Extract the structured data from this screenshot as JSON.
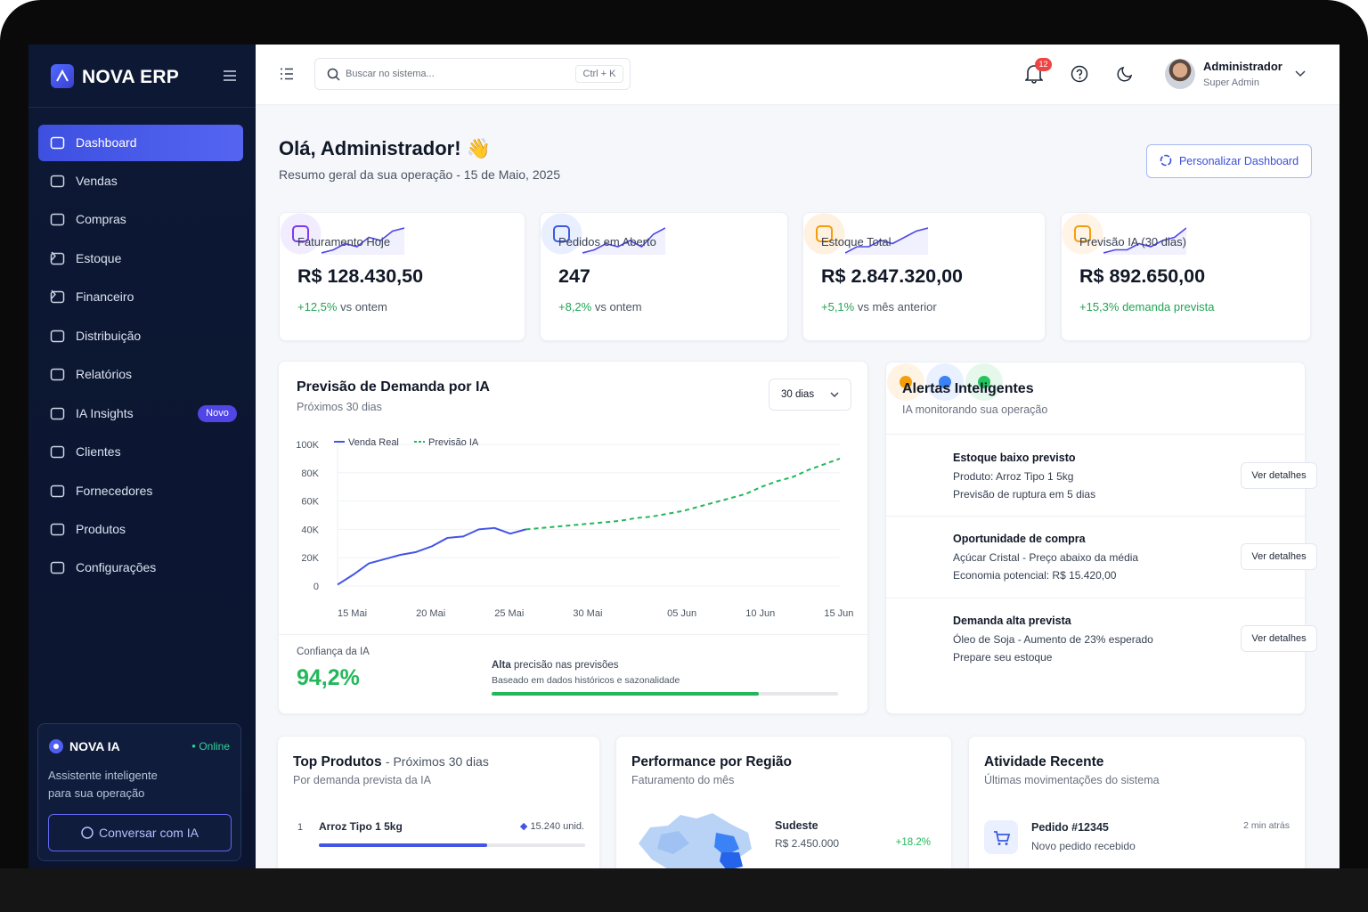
{
  "sidebar": {
    "brand": "NOVA ERP",
    "menu": [
      {
        "label": "Dashboard"
      },
      {
        "label": "Vendas"
      },
      {
        "label": "Compras"
      },
      {
        "label": "Estoque",
        "submenu": true
      },
      {
        "label": "Financeiro",
        "submenu": true
      },
      {
        "label": "Distribuição"
      },
      {
        "label": "Relatórios"
      },
      {
        "label": "IA Insights",
        "badge": "Novo"
      },
      {
        "label": "Clientes"
      },
      {
        "label": "Fornecedores"
      },
      {
        "label": "Produtos"
      },
      {
        "label": "Configurações"
      }
    ],
    "assistant": {
      "title": "NOVA IA",
      "status": "Online",
      "description": "Assistente inteligente para sua operação",
      "button": "Conversar com IA"
    }
  },
  "topbar": {
    "search_placeholder": "Buscar no sistema...",
    "shortcut": "Ctrl + K",
    "notifications": 12,
    "user_name": "Administrador",
    "user_role": "Super Admin"
  },
  "header": {
    "greeting": "Olá, Administrador! 👋",
    "subtitle": "Resumo geral da sua operação - 15 de Maio, 2025",
    "button": "Personalizar Dashboard"
  },
  "kpis": [
    {
      "label": "Faturamento Hoje",
      "value": "R$ 128.430,50",
      "change": "+12,5%",
      "comparison": "vs ontem",
      "color": "#7c3aed",
      "icon_bg": "#f1edff",
      "trend": [
        1,
        2,
        4,
        3,
        6,
        5,
        8,
        9
      ]
    },
    {
      "label": "Pedidos em Aberto",
      "value": "247",
      "change": "+8,2%",
      "comparison": "vs ontem",
      "color": "#3b5bdb",
      "icon_bg": "#e9efff",
      "trend": [
        1,
        2,
        4,
        3,
        5,
        3,
        7,
        9
      ]
    },
    {
      "label": "Estoque Total",
      "value": "R$ 2.847.320,00",
      "change": "+5,1%",
      "comparison": "vs mês anterior",
      "color": "#f59e0b",
      "icon_bg": "#fff1df",
      "trend": [
        1,
        3,
        3,
        5,
        4,
        6,
        8,
        9
      ]
    },
    {
      "label": "Previsão IA (30 dias)",
      "value": "R$ 892.650,00",
      "change": "+15,3%",
      "comparison": "demanda prevista",
      "color": "#f59e0b",
      "icon_bg": "#fff4e6",
      "trend": [
        1,
        2,
        2,
        4,
        3,
        5,
        6,
        9
      ]
    }
  ],
  "demand_chart": {
    "type": "line",
    "title": "Previsão de Demanda por IA",
    "subtitle": "Próximos 30 dias",
    "period": "30 dias",
    "categories": [
      "15 Mai",
      null,
      null,
      null,
      null,
      "20 Mai",
      null,
      null,
      null,
      null,
      "25 Mai",
      null,
      null,
      null,
      null,
      "30 Mai",
      null,
      null,
      null,
      null,
      null,
      "05 Jun",
      null,
      null,
      null,
      null,
      "10 Jun",
      null,
      null,
      null,
      null,
      "15 Jun",
      null
    ],
    "series": [
      {
        "name": "Venda Real",
        "color": "#4355e6",
        "values": [
          1000,
          8000,
          16000,
          19000,
          22000,
          24000,
          28000,
          34000,
          35000,
          40000,
          41000,
          37000,
          40000,
          null,
          null,
          null,
          null,
          null,
          null,
          null,
          null,
          null,
          null,
          null,
          null,
          null,
          null,
          null,
          null,
          null,
          null,
          null,
          null
        ]
      },
      {
        "name": "Previsão IA",
        "color": "#22b85a",
        "dashed": true,
        "values": [
          null,
          null,
          null,
          null,
          null,
          null,
          null,
          null,
          null,
          null,
          null,
          null,
          40000,
          41000,
          42000,
          43000,
          44000,
          45000,
          46000,
          48000,
          49000,
          51000,
          53000,
          56000,
          59000,
          62000,
          65000,
          70000,
          74000,
          77000,
          82000,
          86000,
          90000
        ]
      }
    ],
    "ylim": [
      0,
      100000
    ],
    "yticks": [
      0,
      {
        "value": 20000,
        "label": "20K"
      },
      {
        "value": 40000,
        "label": "40K"
      },
      {
        "value": 60000,
        "label": "60K"
      },
      {
        "value": 80000,
        "label": "80K"
      },
      {
        "value": 100000,
        "label": "100K"
      }
    ],
    "grid": true,
    "confidence_label": "Confiança da IA",
    "confidence": "94,2%",
    "precision_level": "Alta",
    "precision_text": "precisão nas previsões",
    "precision_note": "Baseado em dados históricos e sazonalidade"
  },
  "alerts": {
    "title": "Alertas Inteligentes",
    "subtitle": "IA monitorando sua operação",
    "items": [
      {
        "title": "Estoque baixo previsto",
        "lines": [
          "Produto: Arroz Tipo 1 5kg",
          "Previsão de ruptura em 5 dias"
        ],
        "action": "Ver detalhes",
        "color": "#f59e0b",
        "icon_bg": "#fff3e4"
      },
      {
        "title": "Oportunidade de compra",
        "lines": [
          "Açúcar Cristal - Preço abaixo da média",
          "Economia potencial: R$ 15.420,00"
        ],
        "action": "Ver detalhes",
        "color": "#3b82f6",
        "icon_bg": "#e9f0ff"
      },
      {
        "title": "Demanda alta prevista",
        "lines": [
          "Óleo de Soja - Aumento de 23% esperado",
          "Prepare seu estoque"
        ],
        "action": "Ver detalhes",
        "color": "#22c55e",
        "icon_bg": "#e6f8ec"
      }
    ]
  },
  "top_products": {
    "title": "Top Produtos",
    "title_suffix": "- Próximos 30 dias",
    "subtitle": "Por demanda prevista da IA",
    "items": [
      {
        "rank": 1,
        "name": "Arroz Tipo 1 5kg",
        "quantity": "15.240 unid."
      }
    ]
  },
  "regions": {
    "title": "Performance por Região",
    "subtitle": "Faturamento do mês",
    "items": [
      {
        "name": "Sudeste",
        "revenue": "R$ 2.450.000",
        "change": "+18.2%"
      }
    ]
  },
  "activity": {
    "title": "Atividade Recente",
    "subtitle": "Últimas movimentações do sistema",
    "items": [
      {
        "title": "Pedido #12345",
        "time": "2 min atrás",
        "description": "Novo pedido recebido"
      }
    ]
  }
}
